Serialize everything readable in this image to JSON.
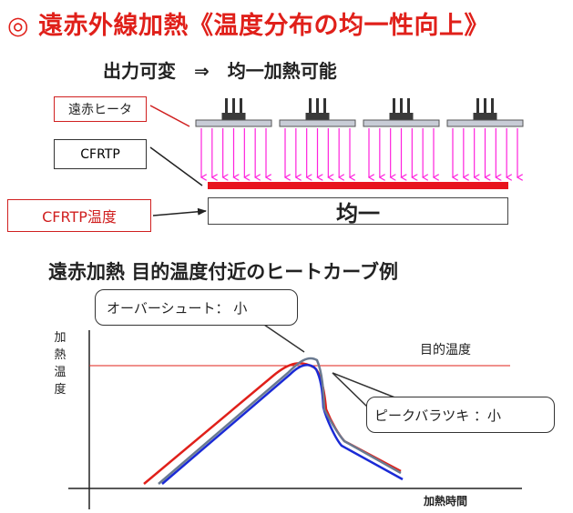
{
  "header": {
    "title": "◎ 遠赤外線加熱《温度分布の均一性向上》",
    "subtitle": "出力可変　⇒　均一加熱可能"
  },
  "diagram": {
    "heater_label": "遠赤ヒータ",
    "cfrtp_label": "CFRTP",
    "temp_label": "CFRTP温度",
    "uniform_text": "均一",
    "heater_count": 4,
    "colors": {
      "accent_red": "#e0201a",
      "arrow_magenta": "#ff22dd",
      "heater_plate": "#c8ccd6",
      "cfrtp_bar": "#e8141c"
    }
  },
  "graph": {
    "section_title": "遠赤加熱  目的温度付近のヒートカーブ例",
    "overshoot_callout": "オーバーシュート：  小",
    "peak_callout": "ピークバラツキ ：小",
    "y_axis_label": "加熱温度",
    "x_axis_label": "加熱時間",
    "target_label": "目的温度",
    "curve_colors": [
      "#e0201a",
      "#1a2ad6",
      "#6a7a90"
    ],
    "target_line_color": "#e0201a"
  }
}
